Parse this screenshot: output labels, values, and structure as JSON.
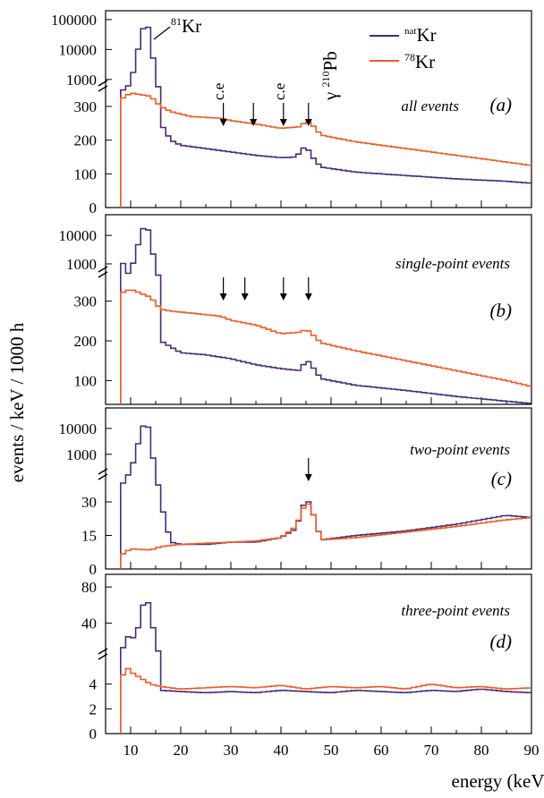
{
  "chart_data": {
    "type": "line",
    "xlabel": "energy (keV)",
    "ylabel": "events / keV / 1000 h",
    "xlim": [
      5,
      90
    ],
    "x_ticks": [
      "10",
      "20",
      "30",
      "40",
      "50",
      "60",
      "70",
      "80",
      "90"
    ],
    "legend": {
      "placement": "top-right",
      "entries": [
        {
          "sup": "nat",
          "name": "Kr",
          "color": "#4a2a78"
        },
        {
          "sup": "78",
          "name": "Kr",
          "color": "#f05a23"
        }
      ]
    },
    "colors": {
      "nat": "#4a2a78",
      "k78": "#f05a23"
    },
    "panels": [
      {
        "id": "a",
        "label": "all events",
        "tag": "(a)",
        "upper_ticks": [
          "100000",
          "10000",
          "1000"
        ],
        "lower_ticks": [
          "300",
          "200",
          "100",
          "0"
        ],
        "annotations": {
          "kr81": {
            "sup": "81",
            "text": "Kr",
            "x": 14
          },
          "ce1": "c.e",
          "ce2": "c.e",
          "pb": {
            "pre": "γ ",
            "sup": "210",
            "text": "Pb"
          },
          "arrows_keV": [
            28.5,
            34.5,
            40.5,
            45.5
          ]
        },
        "series": [
          {
            "name": "Kr",
            "sup": "nat",
            "points": [
              [
                8,
                360
              ],
              [
                10,
                700
              ],
              [
                12,
                25000
              ],
              [
                13,
                100000
              ],
              [
                14,
                30000
              ],
              [
                15,
                900
              ],
              [
                16,
                250
              ],
              [
                18,
                200
              ],
              [
                20,
                185
              ],
              [
                25,
                175
              ],
              [
                30,
                165
              ],
              [
                35,
                155
              ],
              [
                40,
                148
              ],
              [
                43,
                150
              ],
              [
                45,
                185
              ],
              [
                46,
                155
              ],
              [
                48,
                120
              ],
              [
                55,
                105
              ],
              [
                65,
                95
              ],
              [
                75,
                85
              ],
              [
                85,
                78
              ],
              [
                90,
                72
              ]
            ]
          },
          {
            "name": "Kr",
            "sup": "78",
            "points": [
              [
                8,
                320
              ],
              [
                10,
                340
              ],
              [
                14,
                330
              ],
              [
                16,
                300
              ],
              [
                18,
                285
              ],
              [
                22,
                270
              ],
              [
                28,
                265
              ],
              [
                30,
                258
              ],
              [
                35,
                248
              ],
              [
                40,
                235
              ],
              [
                44,
                240
              ],
              [
                45,
                258
              ],
              [
                46,
                250
              ],
              [
                48,
                215
              ],
              [
                55,
                195
              ],
              [
                65,
                175
              ],
              [
                75,
                155
              ],
              [
                85,
                135
              ],
              [
                90,
                125
              ]
            ]
          }
        ]
      },
      {
        "id": "b",
        "label": "single-point events",
        "tag": "(b)",
        "upper_ticks": [
          "10000",
          "1000"
        ],
        "lower_ticks": [
          "300",
          "200",
          "100"
        ],
        "annotations": {
          "arrows_keV": [
            28.5,
            32.8,
            40.5,
            45.5
          ]
        },
        "series": [
          {
            "name": "Kr",
            "sup": "nat",
            "points": [
              [
                8,
                360
              ],
              [
                10,
                500
              ],
              [
                12,
                10000
              ],
              [
                13,
                30000
              ],
              [
                14,
                8000
              ],
              [
                15,
                600
              ],
              [
                16,
                200
              ],
              [
                18,
                185
              ],
              [
                20,
                170
              ],
              [
                25,
                165
              ],
              [
                30,
                155
              ],
              [
                35,
                140
              ],
              [
                40,
                130
              ],
              [
                44,
                125
              ],
              [
                45,
                155
              ],
              [
                46,
                140
              ],
              [
                48,
                105
              ],
              [
                55,
                88
              ],
              [
                65,
                75
              ],
              [
                75,
                60
              ],
              [
                85,
                48
              ],
              [
                90,
                42
              ]
            ]
          },
          {
            "name": "Kr",
            "sup": "78",
            "points": [
              [
                8,
                320
              ],
              [
                10,
                330
              ],
              [
                14,
                310
              ],
              [
                16,
                280
              ],
              [
                18,
                275
              ],
              [
                22,
                270
              ],
              [
                28,
                262
              ],
              [
                30,
                252
              ],
              [
                35,
                240
              ],
              [
                40,
                218
              ],
              [
                44,
                222
              ],
              [
                45,
                230
              ],
              [
                46,
                220
              ],
              [
                48,
                195
              ],
              [
                55,
                175
              ],
              [
                65,
                150
              ],
              [
                75,
                125
              ],
              [
                85,
                100
              ],
              [
                90,
                85
              ]
            ]
          }
        ]
      },
      {
        "id": "c",
        "label": "two-point events",
        "tag": "(c)",
        "upper_ticks": [
          "10000",
          "1000"
        ],
        "lower_ticks": [
          "30",
          "15",
          "0"
        ],
        "annotations": {
          "arrows_keV": [
            45.5
          ]
        },
        "series": [
          {
            "name": "Kr",
            "sup": "nat",
            "points": [
              [
                8,
                36
              ],
              [
                10,
                200
              ],
              [
                12,
                6000
              ],
              [
                13,
                25000
              ],
              [
                14,
                5000
              ],
              [
                15,
                100
              ],
              [
                16,
                30
              ],
              [
                18,
                12
              ],
              [
                20,
                11
              ],
              [
                25,
                11
              ],
              [
                30,
                12
              ],
              [
                35,
                12
              ],
              [
                40,
                14
              ],
              [
                43,
                18
              ],
              [
                45,
                32
              ],
              [
                46,
                28
              ],
              [
                48,
                13
              ],
              [
                55,
                15
              ],
              [
                65,
                17
              ],
              [
                75,
                20
              ],
              [
                85,
                24
              ],
              [
                90,
                23
              ]
            ]
          },
          {
            "name": "Kr",
            "sup": "78",
            "points": [
              [
                8,
                6
              ],
              [
                10,
                9
              ],
              [
                14,
                8.5
              ],
              [
                16,
                10
              ],
              [
                20,
                11
              ],
              [
                25,
                11.5
              ],
              [
                30,
                12
              ],
              [
                35,
                12.5
              ],
              [
                40,
                14
              ],
              [
                43,
                19
              ],
              [
                45,
                30
              ],
              [
                46,
                28
              ],
              [
                48,
                13
              ],
              [
                55,
                14
              ],
              [
                65,
                16.5
              ],
              [
                75,
                19
              ],
              [
                85,
                22
              ],
              [
                90,
                23
              ]
            ]
          }
        ]
      },
      {
        "id": "d",
        "label": "three-point events",
        "tag": "(d)",
        "upper_ticks": [
          "80",
          "40"
        ],
        "lower_ticks": [
          "4",
          "2",
          "0"
        ],
        "annotations": {},
        "series": [
          {
            "name": "Kr",
            "sup": "nat",
            "points": [
              [
                8,
                4
              ],
              [
                9,
                22
              ],
              [
                10,
                28
              ],
              [
                11,
                20
              ],
              [
                12,
                50
              ],
              [
                13,
                70
              ],
              [
                14,
                55
              ],
              [
                15,
                15
              ],
              [
                16,
                3.5
              ],
              [
                20,
                3.4
              ],
              [
                25,
                3.3
              ],
              [
                30,
                3.4
              ],
              [
                35,
                3.3
              ],
              [
                40,
                3.5
              ],
              [
                45,
                3.4
              ],
              [
                50,
                3.3
              ],
              [
                55,
                3.5
              ],
              [
                60,
                3.4
              ],
              [
                65,
                3.3
              ],
              [
                70,
                3.5
              ],
              [
                75,
                3.4
              ],
              [
                80,
                3.6
              ],
              [
                85,
                3.4
              ],
              [
                90,
                3.3
              ]
            ]
          },
          {
            "name": "Kr",
            "sup": "78",
            "points": [
              [
                8,
                4
              ],
              [
                9,
                5.5
              ],
              [
                10,
                5
              ],
              [
                12,
                4.5
              ],
              [
                14,
                4
              ],
              [
                16,
                3.8
              ],
              [
                20,
                3.6
              ],
              [
                25,
                3.7
              ],
              [
                30,
                3.8
              ],
              [
                35,
                3.7
              ],
              [
                40,
                3.9
              ],
              [
                45,
                3.6
              ],
              [
                50,
                3.8
              ],
              [
                55,
                3.7
              ],
              [
                60,
                3.8
              ],
              [
                65,
                3.6
              ],
              [
                70,
                4
              ],
              [
                75,
                3.7
              ],
              [
                80,
                3.8
              ],
              [
                85,
                3.6
              ],
              [
                90,
                3.7
              ]
            ]
          }
        ]
      }
    ]
  }
}
